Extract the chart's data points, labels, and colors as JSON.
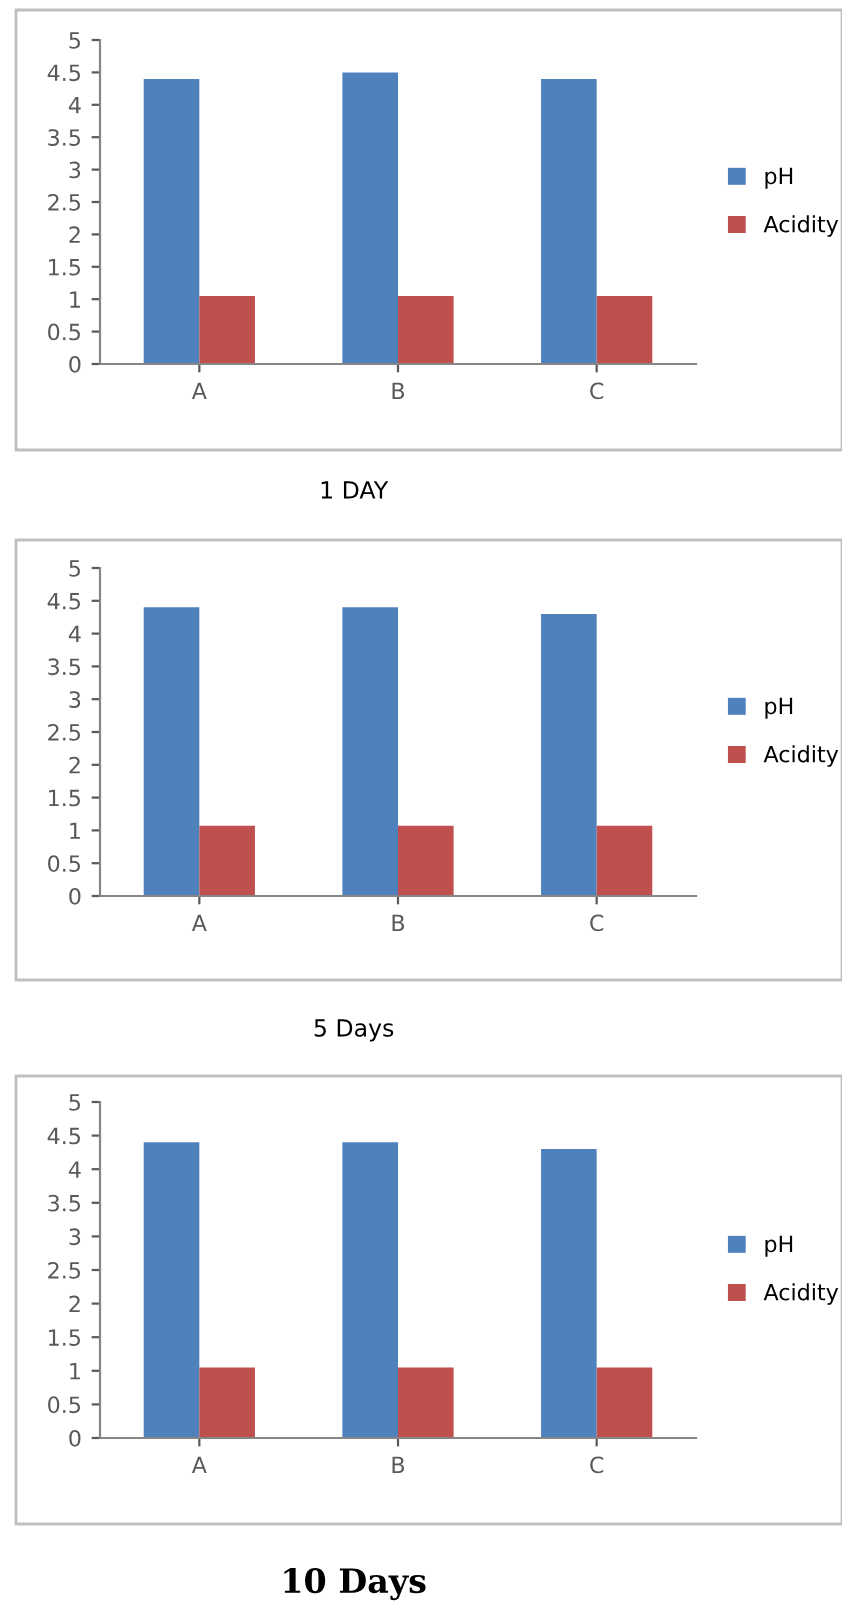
{
  "chart_data": [
    {
      "type": "bar",
      "title": "1 DAY",
      "categories": [
        "A",
        "B",
        "C"
      ],
      "series": [
        {
          "name": "pH",
          "color": "#4f81bd",
          "values": [
            4.4,
            4.5,
            4.4
          ]
        },
        {
          "name": "Acidity",
          "color": "#c0504d",
          "values": [
            1.05,
            1.05,
            1.05
          ]
        }
      ],
      "ylim": [
        0,
        5
      ],
      "yticks": [
        0,
        0.5,
        1,
        1.5,
        2,
        2.5,
        3,
        3.5,
        4,
        4.5,
        5
      ],
      "grid": false,
      "legend": "right"
    },
    {
      "type": "bar",
      "title": "5 Days",
      "categories": [
        "A",
        "B",
        "C"
      ],
      "series": [
        {
          "name": "pH",
          "color": "#4f81bd",
          "values": [
            4.4,
            4.4,
            4.3
          ]
        },
        {
          "name": "Acidity",
          "color": "#c0504d",
          "values": [
            1.07,
            1.07,
            1.07
          ]
        }
      ],
      "ylim": [
        0,
        5
      ],
      "yticks": [
        0,
        0.5,
        1,
        1.5,
        2,
        2.5,
        3,
        3.5,
        4,
        4.5,
        5
      ],
      "grid": false,
      "legend": "right"
    },
    {
      "type": "bar",
      "title": "10 Days",
      "categories": [
        "A",
        "B",
        "C"
      ],
      "series": [
        {
          "name": "pH",
          "color": "#4f81bd",
          "values": [
            4.4,
            4.4,
            4.3
          ]
        },
        {
          "name": "Acidity",
          "color": "#c0504d",
          "values": [
            1.05,
            1.05,
            1.05
          ]
        }
      ],
      "ylim": [
        0,
        5
      ],
      "yticks": [
        0,
        0.5,
        1,
        1.5,
        2,
        2.5,
        3,
        3.5,
        4,
        4.5,
        5
      ],
      "grid": false,
      "legend": "right"
    }
  ]
}
